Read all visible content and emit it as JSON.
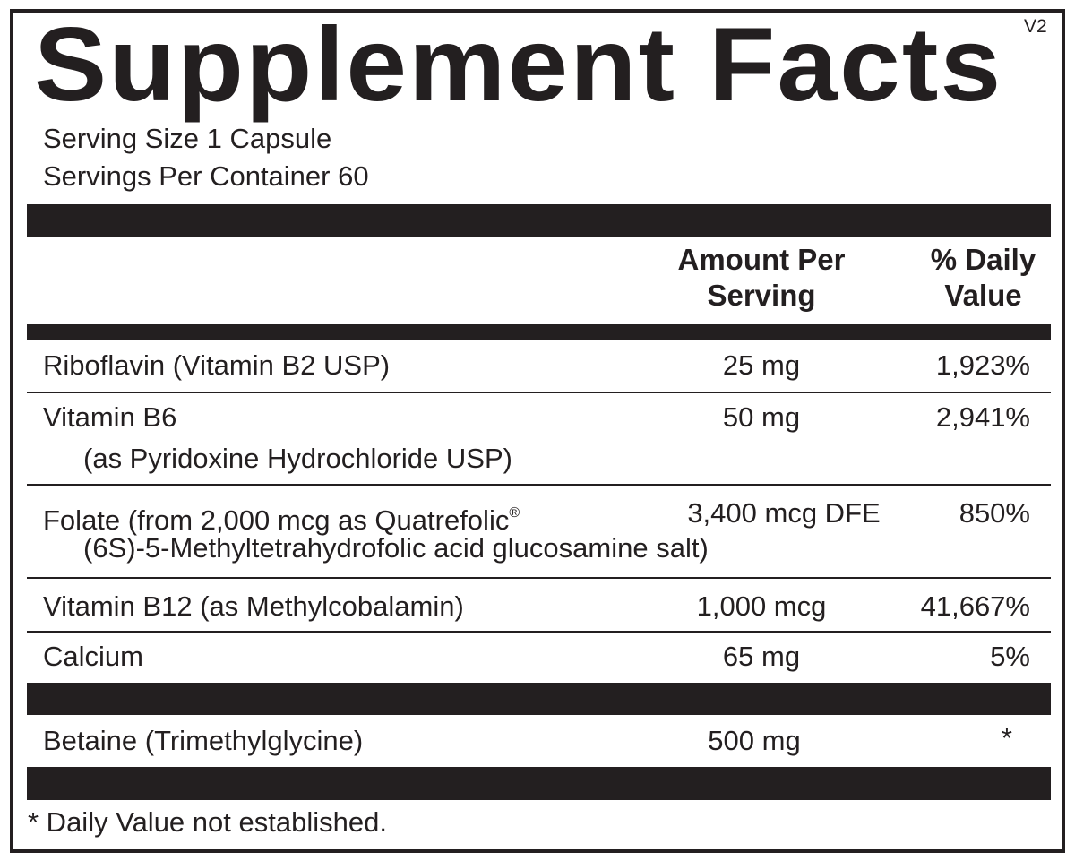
{
  "title": "Supplement Facts",
  "version": "V2",
  "serving_size": "Serving Size 1 Capsule",
  "servings_per_container": "Servings Per Container 60",
  "header": {
    "amount_line1": "Amount Per",
    "amount_line2": "Serving",
    "dv_line1": "% Daily",
    "dv_line2": "Value"
  },
  "rows": [
    {
      "name": "Riboflavin (Vitamin B2 USP)",
      "amount": "25 mg",
      "dv": "1,923%"
    },
    {
      "name": "Vitamin B6",
      "sub": "(as Pyridoxine Hydrochloride USP)",
      "amount": "50 mg",
      "dv": "2,941%"
    },
    {
      "name": "Folate (from 2,000 mcg as Quatrefolic",
      "mark": "®",
      "sub": "(6S)-5-Methyltetrahydrofolic acid glucosamine salt)",
      "amount": "3,400 mcg DFE",
      "dv": "850%"
    },
    {
      "name": "Vitamin B12 (as Methylcobalamin)",
      "amount": "1,000 mcg",
      "dv": "41,667%"
    },
    {
      "name": "Calcium",
      "amount": "65 mg",
      "dv": "5%"
    },
    {
      "name": "Betaine (Trimethylglycine)",
      "amount": "500 mg",
      "dv": "*"
    }
  ],
  "footnote": "* Daily Value not established."
}
